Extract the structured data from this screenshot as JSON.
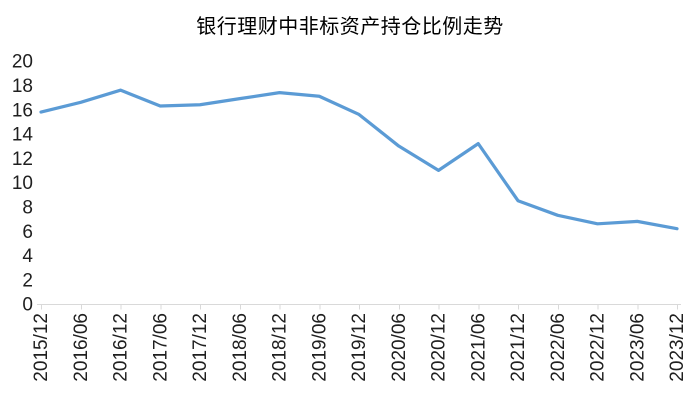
{
  "page": {
    "background_color": "#ffffff"
  },
  "chart_data": {
    "type": "line",
    "title": "银行理财中非标资产持仓比例走势",
    "xlabel": "",
    "ylabel": "",
    "categories": [
      "2015/12",
      "2016/06",
      "2016/12",
      "2017/06",
      "2017/12",
      "2018/06",
      "2018/12",
      "2019/06",
      "2019/12",
      "2020/06",
      "2020/12",
      "2021/06",
      "2021/12",
      "2022/06",
      "2022/12",
      "2023/06",
      "2023/12"
    ],
    "values": [
      15.8,
      16.6,
      17.6,
      16.3,
      16.4,
      16.9,
      17.4,
      17.1,
      15.6,
      13.0,
      11.0,
      13.2,
      8.5,
      7.3,
      6.6,
      6.8,
      6.2
    ],
    "ylim": [
      0,
      20
    ],
    "yticks": [
      0,
      2,
      4,
      6,
      8,
      10,
      12,
      14,
      16,
      18,
      20
    ],
    "grid": false,
    "legend": false,
    "line_color": "#5B9BD5",
    "axis_color": "#D9D9D9",
    "label_color": "#1f1f1f",
    "x_label_rotation_deg": -90
  }
}
